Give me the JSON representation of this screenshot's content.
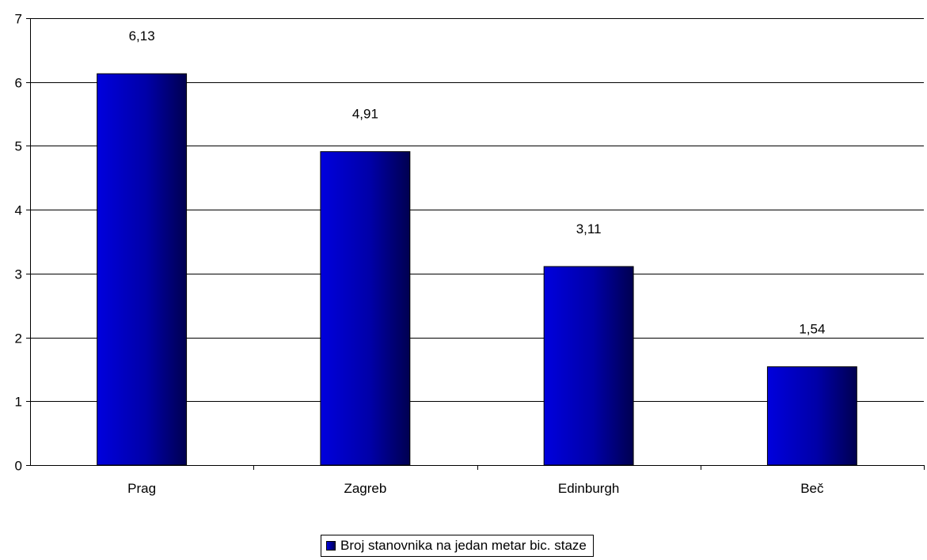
{
  "chart_data": {
    "type": "bar",
    "categories": [
      "Prag",
      "Zagreb",
      "Edinburgh",
      "Beč"
    ],
    "series": [
      {
        "name": "Broj stanovnika na jedan metar bic. staze",
        "values": [
          6.13,
          4.91,
          3.11,
          1.54
        ],
        "labels": [
          "6,13",
          "4,91",
          "3,11",
          "1,54"
        ]
      }
    ],
    "y_ticks": [
      "0",
      "1",
      "2",
      "3",
      "4",
      "5",
      "6",
      "7"
    ],
    "ylim": [
      0,
      7
    ],
    "grid": true,
    "legend_position": "bottom",
    "colors": {
      "bar_light": "#0000dd",
      "bar_dark": "#000050",
      "grid": "#000000"
    }
  }
}
